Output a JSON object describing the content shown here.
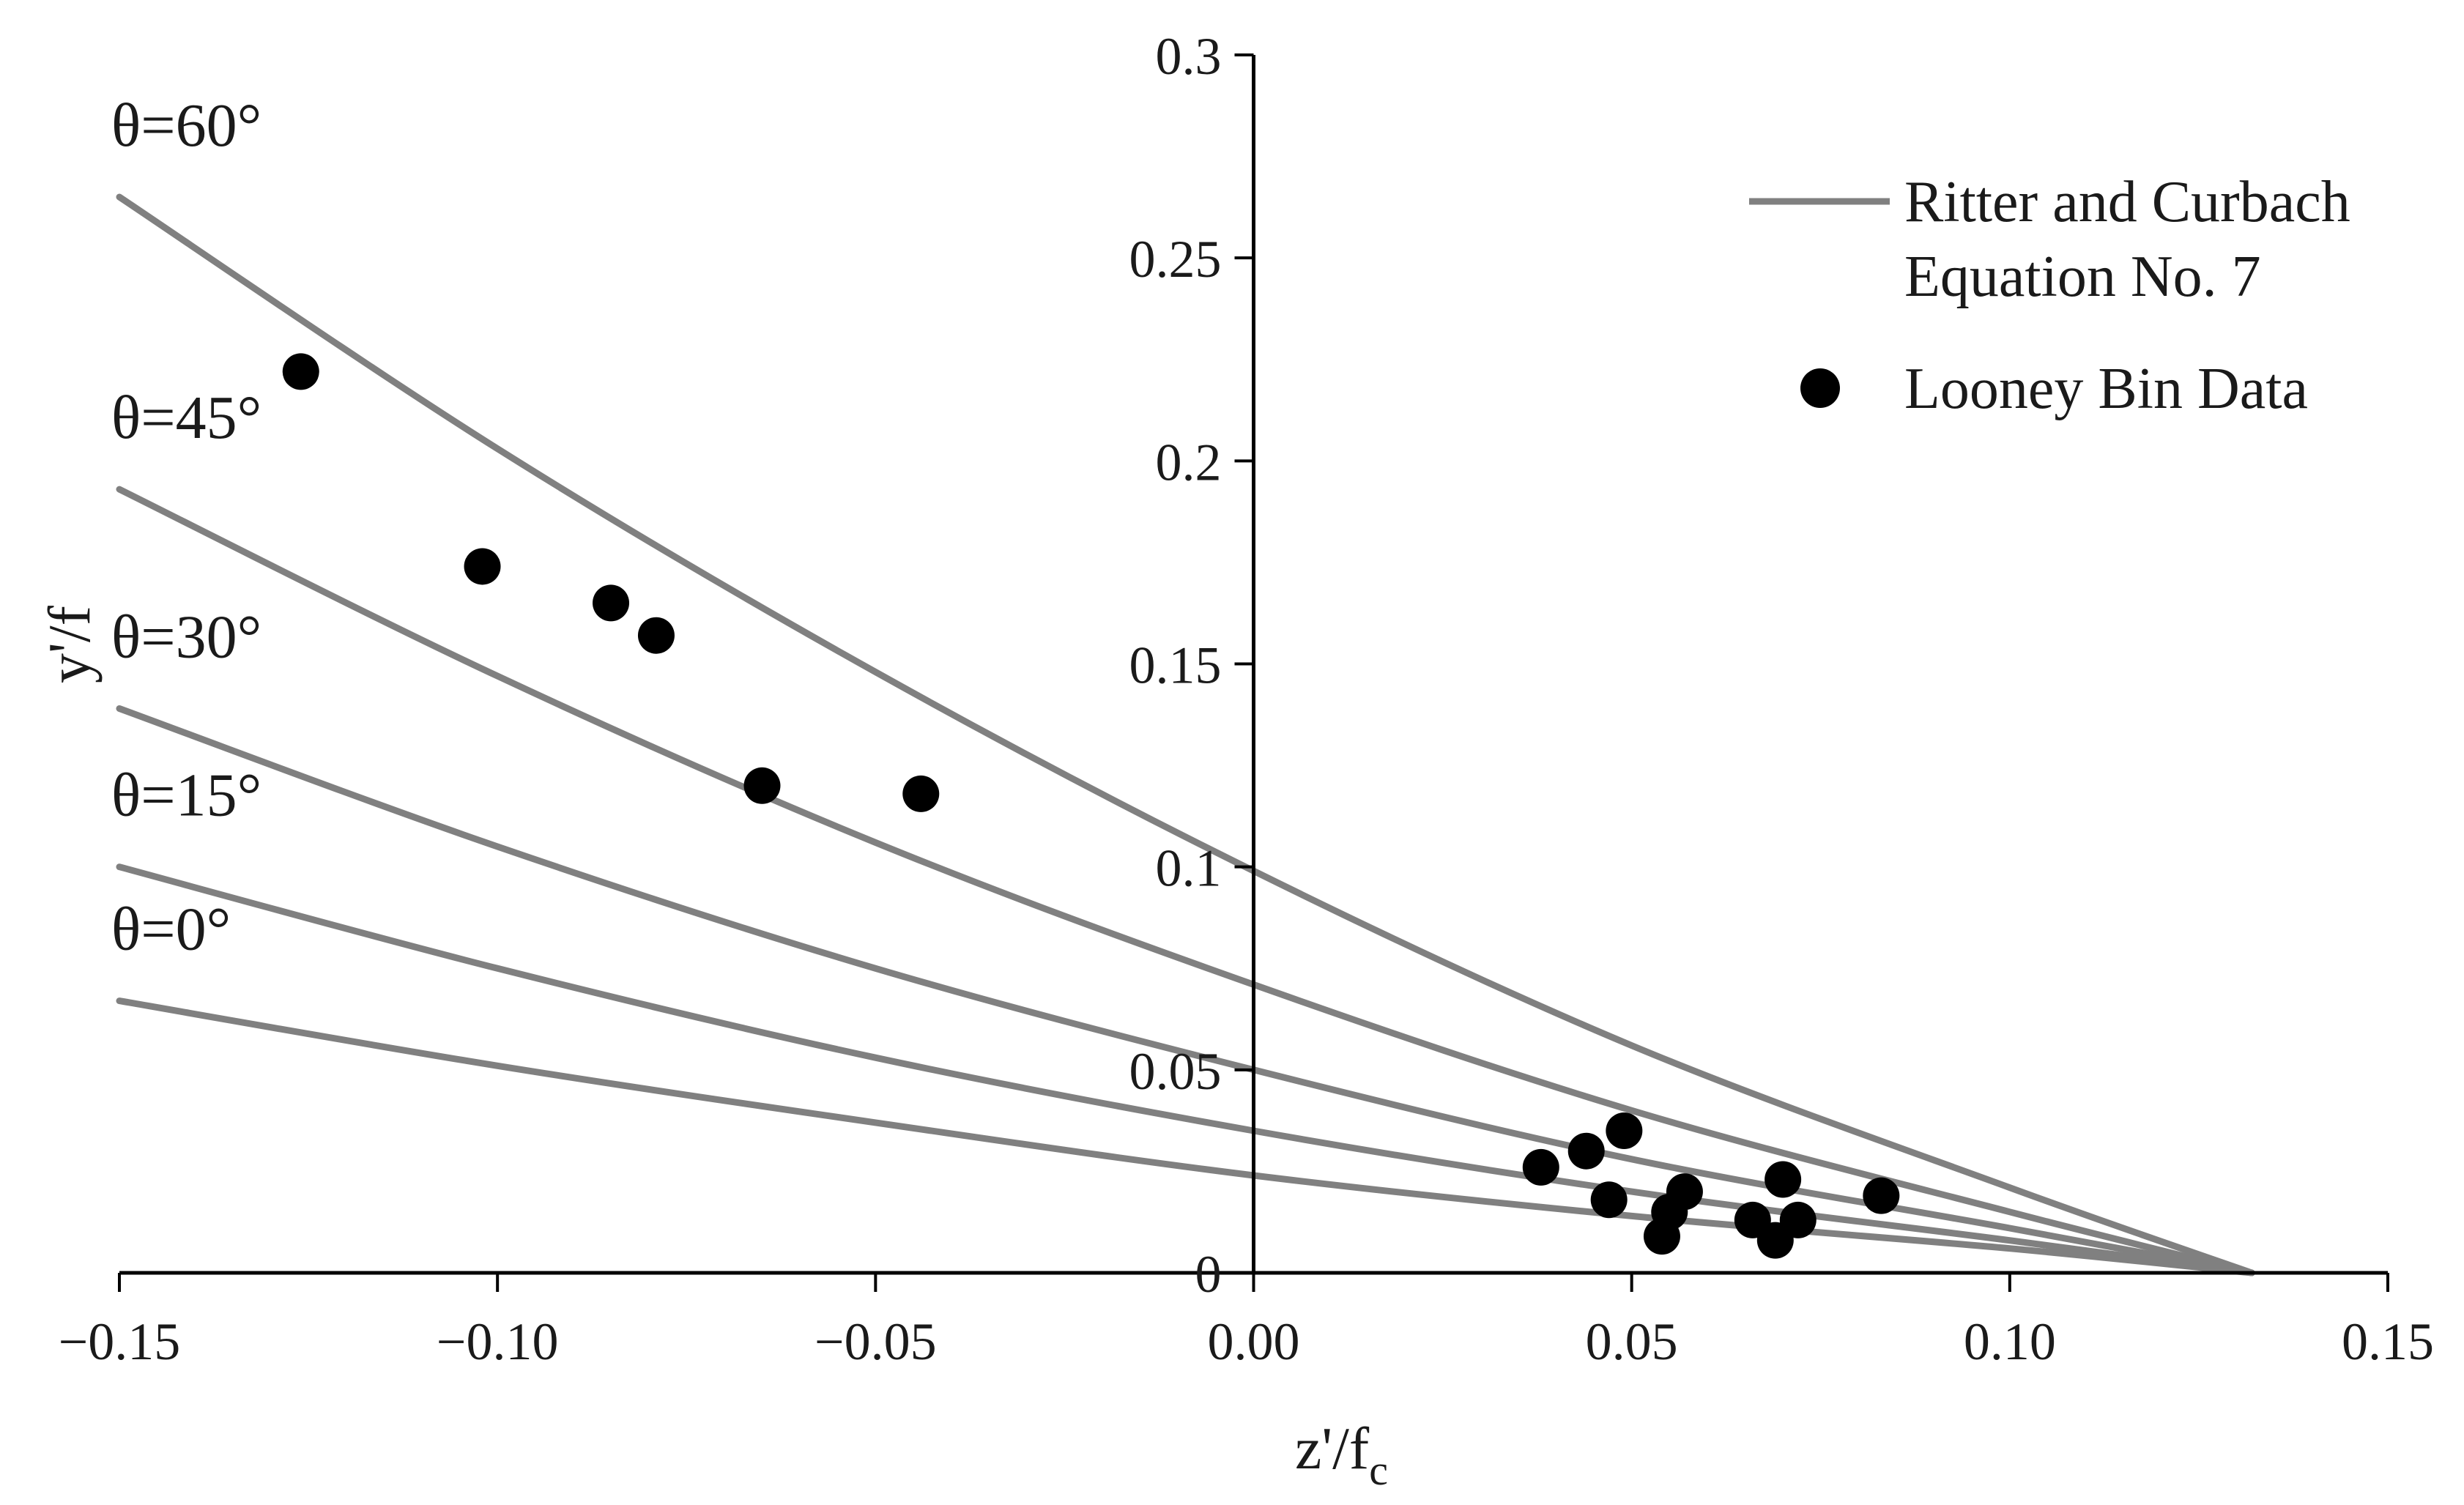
{
  "chart_data": {
    "type": "scatter",
    "title": "",
    "xlabel": "z'/f",
    "xlabel_subscript": "c",
    "ylabel": "y'/f",
    "xlim": [
      -0.15,
      0.15
    ],
    "ylim": [
      0,
      0.3
    ],
    "x_ticks": [
      -0.15,
      -0.1,
      -0.05,
      0.0,
      0.05,
      0.1,
      0.15
    ],
    "x_tick_labels": [
      "−0.15",
      "−0.10",
      "−0.05",
      "0.00",
      "0.05",
      "0.10",
      "0.15"
    ],
    "y_ticks": [
      0,
      0.05,
      0.1,
      0.15,
      0.2,
      0.25,
      0.3
    ],
    "y_tick_labels": [
      "0",
      "0.05",
      "0.1",
      "0.15",
      "0.2",
      "0.25",
      "0.3"
    ],
    "grid": false,
    "legend_position": "top-right",
    "series": [
      {
        "name": "Ritter and Curbach Equation No. 7",
        "legend_lines": [
          "Ritter and Curbach",
          "Equation No. 7"
        ],
        "kind": "line",
        "color": "#808080",
        "curves": [
          {
            "label": "θ=0°",
            "points": [
              [
                -0.15,
                0.067
              ],
              [
                -0.1,
                0.051
              ],
              [
                -0.05,
                0.037
              ],
              [
                0.0,
                0.024
              ],
              [
                0.05,
                0.014
              ],
              [
                0.1,
                0.006
              ],
              [
                0.132,
                0.0
              ]
            ]
          },
          {
            "label": "θ=15°",
            "points": [
              [
                -0.15,
                0.1
              ],
              [
                -0.1,
                0.075
              ],
              [
                -0.05,
                0.053
              ],
              [
                0.0,
                0.035
              ],
              [
                0.05,
                0.02
              ],
              [
                0.1,
                0.008
              ],
              [
                0.132,
                0.0
              ]
            ]
          },
          {
            "label": "θ=30°",
            "points": [
              [
                -0.15,
                0.139
              ],
              [
                -0.1,
                0.105
              ],
              [
                -0.05,
                0.075
              ],
              [
                0.0,
                0.05
              ],
              [
                0.05,
                0.028
              ],
              [
                0.1,
                0.011
              ],
              [
                0.132,
                0.0
              ]
            ]
          },
          {
            "label": "θ=45°",
            "points": [
              [
                -0.15,
                0.193
              ],
              [
                -0.1,
                0.147
              ],
              [
                -0.05,
                0.106
              ],
              [
                0.0,
                0.071
              ],
              [
                0.05,
                0.04
              ],
              [
                0.1,
                0.015
              ],
              [
                0.132,
                0.0
              ]
            ]
          },
          {
            "label": "θ=60°",
            "points": [
              [
                -0.15,
                0.265
              ],
              [
                -0.1,
                0.203
              ],
              [
                -0.05,
                0.148
              ],
              [
                0.0,
                0.099
              ],
              [
                0.05,
                0.056
              ],
              [
                0.1,
                0.021
              ],
              [
                0.132,
                0.0
              ]
            ]
          }
        ]
      },
      {
        "name": "Looney Bin Data",
        "kind": "scatter",
        "color": "#000000",
        "points": [
          [
            -0.126,
            0.222
          ],
          [
            -0.102,
            0.174
          ],
          [
            -0.085,
            0.165
          ],
          [
            -0.079,
            0.157
          ],
          [
            -0.065,
            0.12
          ],
          [
            -0.044,
            0.118
          ],
          [
            0.038,
            0.026
          ],
          [
            0.044,
            0.03
          ],
          [
            0.047,
            0.018
          ],
          [
            0.049,
            0.035
          ],
          [
            0.054,
            0.009
          ],
          [
            0.055,
            0.015
          ],
          [
            0.057,
            0.02
          ],
          [
            0.066,
            0.013
          ],
          [
            0.069,
            0.008
          ],
          [
            0.07,
            0.023
          ],
          [
            0.072,
            0.013
          ],
          [
            0.083,
            0.019
          ]
        ]
      }
    ]
  }
}
